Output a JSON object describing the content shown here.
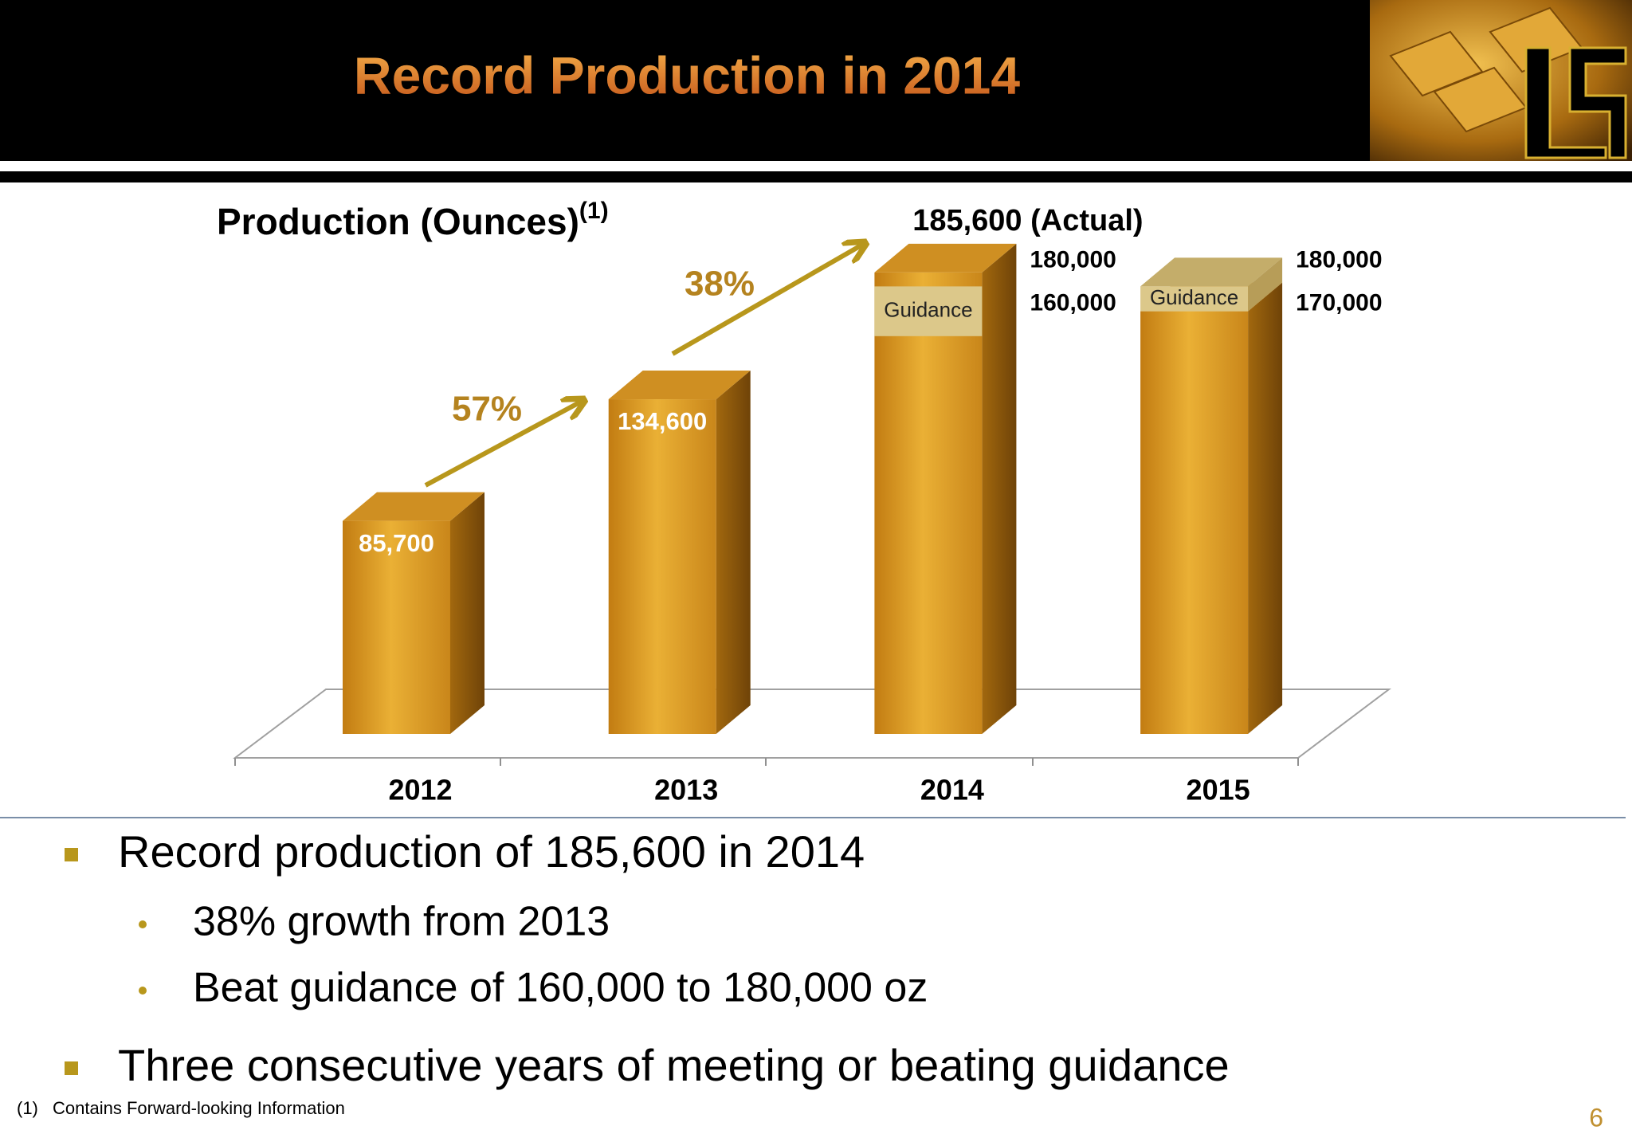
{
  "header": {
    "title": "Record Production in 2014"
  },
  "chart_data": {
    "type": "bar3d",
    "title": "Production (Ounces)",
    "title_note": "(1)",
    "categories": [
      "2012",
      "2013",
      "2014",
      "2015"
    ],
    "values": [
      85700,
      134600,
      185600,
      null
    ],
    "value_labels": [
      "85,700",
      "134,600",
      "185,600 (Actual)",
      null
    ],
    "guidance_low": [
      null,
      null,
      160000,
      170000
    ],
    "guidance_low_labels": [
      null,
      null,
      "160,000",
      "170,000"
    ],
    "guidance_high": [
      null,
      null,
      180000,
      180000
    ],
    "guidance_high_labels": [
      null,
      null,
      "180,000",
      "180,000"
    ],
    "guidance_label": "Guidance",
    "annotations": [
      "57%",
      "38%"
    ],
    "ylim": [
      0,
      200000
    ],
    "color": "#d99a26",
    "guidance_color": "#dcc88a"
  },
  "bullets": [
    {
      "text": "Record production of 185,600 in 2014",
      "sub": [
        "38% growth from 2013",
        "Beat guidance of 160,000 to 180,000 oz"
      ]
    },
    {
      "text": "Three consecutive years of meeting or beating guidance"
    }
  ],
  "footnote": {
    "marker": "(1)",
    "text": "Contains Forward-looking Information"
  },
  "page_number": "6"
}
